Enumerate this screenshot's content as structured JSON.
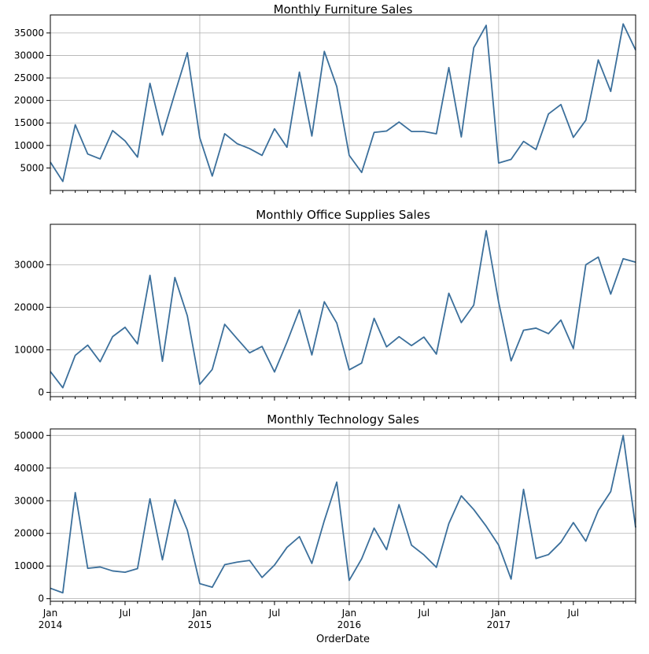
{
  "chart_data": [
    {
      "type": "line",
      "title": "Monthly Furniture Sales",
      "ylim": [
        0,
        39000
      ],
      "yticks": [
        5000,
        10000,
        15000,
        20000,
        25000,
        30000,
        35000
      ],
      "grid": true,
      "color": "#3b6f9b",
      "x": [
        "2014-01",
        "2014-02",
        "2014-03",
        "2014-04",
        "2014-05",
        "2014-06",
        "2014-07",
        "2014-08",
        "2014-09",
        "2014-10",
        "2014-11",
        "2014-12",
        "2015-01",
        "2015-02",
        "2015-03",
        "2015-04",
        "2015-05",
        "2015-06",
        "2015-07",
        "2015-08",
        "2015-09",
        "2015-10",
        "2015-11",
        "2015-12",
        "2016-01",
        "2016-02",
        "2016-03",
        "2016-04",
        "2016-05",
        "2016-06",
        "2016-07",
        "2016-08",
        "2016-09",
        "2016-10",
        "2016-11",
        "2016-12",
        "2017-01",
        "2017-02",
        "2017-03",
        "2017-04",
        "2017-05",
        "2017-06",
        "2017-07",
        "2017-08",
        "2017-09",
        "2017-10",
        "2017-11",
        "2017-12"
      ],
      "values": [
        6300,
        2000,
        14600,
        8100,
        7000,
        13300,
        11000,
        7400,
        23800,
        12300,
        21600,
        30600,
        11700,
        3200,
        12600,
        10400,
        9300,
        7800,
        13700,
        9600,
        26300,
        12100,
        30900,
        23100,
        7800,
        4000,
        12900,
        13200,
        15200,
        13100,
        13100,
        12600,
        27300,
        11900,
        31700,
        36700,
        6100,
        6900,
        10900,
        9100,
        17000,
        19100,
        11800,
        15600,
        29000,
        22000,
        37000,
        31200
      ]
    },
    {
      "type": "line",
      "title": "Monthly Office Supplies Sales",
      "ylim": [
        -1000,
        39500
      ],
      "yticks": [
        0,
        10000,
        20000,
        30000
      ],
      "grid": true,
      "color": "#3b6f9b",
      "x": [
        "2014-01",
        "2014-02",
        "2014-03",
        "2014-04",
        "2014-05",
        "2014-06",
        "2014-07",
        "2014-08",
        "2014-09",
        "2014-10",
        "2014-11",
        "2014-12",
        "2015-01",
        "2015-02",
        "2015-03",
        "2015-04",
        "2015-05",
        "2015-06",
        "2015-07",
        "2015-08",
        "2015-09",
        "2015-10",
        "2015-11",
        "2015-12",
        "2016-01",
        "2016-02",
        "2016-03",
        "2016-04",
        "2016-05",
        "2016-06",
        "2016-07",
        "2016-08",
        "2016-09",
        "2016-10",
        "2016-11",
        "2016-12",
        "2017-01",
        "2017-02",
        "2017-03",
        "2017-04",
        "2017-05",
        "2017-06",
        "2017-07",
        "2017-08",
        "2017-09",
        "2017-10",
        "2017-11",
        "2017-12"
      ],
      "values": [
        4900,
        1100,
        8700,
        11100,
        7200,
        13100,
        15300,
        11400,
        27500,
        7300,
        27000,
        18000,
        1900,
        5400,
        16000,
        12600,
        9300,
        10800,
        4800,
        11800,
        19400,
        8800,
        21300,
        16300,
        5300,
        6900,
        17400,
        10700,
        13100,
        11000,
        13000,
        9000,
        23300,
        16400,
        20500,
        38000,
        21200,
        7400,
        14600,
        15100,
        13800,
        17000,
        10300,
        30000,
        31800,
        23100,
        31400,
        30600
      ]
    },
    {
      "type": "line",
      "title": "Monthly Technology Sales",
      "ylim": [
        -800,
        52000
      ],
      "yticks": [
        0,
        10000,
        20000,
        30000,
        40000,
        50000
      ],
      "grid": true,
      "color": "#3b6f9b",
      "xlabel": "OrderDate",
      "x": [
        "2014-01",
        "2014-02",
        "2014-03",
        "2014-04",
        "2014-05",
        "2014-06",
        "2014-07",
        "2014-08",
        "2014-09",
        "2014-10",
        "2014-11",
        "2014-12",
        "2015-01",
        "2015-02",
        "2015-03",
        "2015-04",
        "2015-05",
        "2015-06",
        "2015-07",
        "2015-08",
        "2015-09",
        "2015-10",
        "2015-11",
        "2015-12",
        "2016-01",
        "2016-02",
        "2016-03",
        "2016-04",
        "2016-05",
        "2016-06",
        "2016-07",
        "2016-08",
        "2016-09",
        "2016-10",
        "2016-11",
        "2016-12",
        "2017-01",
        "2017-02",
        "2017-03",
        "2017-04",
        "2017-05",
        "2017-06",
        "2017-07",
        "2017-08",
        "2017-09",
        "2017-10",
        "2017-11",
        "2017-12"
      ],
      "values": [
        3200,
        1800,
        32500,
        9300,
        9700,
        8500,
        8100,
        9200,
        30600,
        11900,
        30300,
        21000,
        4600,
        3500,
        10400,
        11200,
        11700,
        6500,
        10300,
        15700,
        19000,
        10800,
        23900,
        35700,
        5600,
        12200,
        21600,
        15000,
        28800,
        16400,
        13400,
        9600,
        23000,
        31500,
        27300,
        22200,
        16400,
        6000,
        33500,
        12300,
        13500,
        17300,
        23300,
        17600,
        27000,
        32800,
        50000,
        21800
      ]
    }
  ],
  "x_axis": {
    "ticks": [
      {
        "label": "Jan",
        "sub": "2014",
        "date": "2014-01"
      },
      {
        "label": "Jul",
        "sub": "",
        "date": "2014-07"
      },
      {
        "label": "Jan",
        "sub": "2015",
        "date": "2015-01"
      },
      {
        "label": "Jul",
        "sub": "",
        "date": "2015-07"
      },
      {
        "label": "Jan",
        "sub": "2016",
        "date": "2016-01"
      },
      {
        "label": "Jul",
        "sub": "",
        "date": "2016-07"
      },
      {
        "label": "Jan",
        "sub": "2017",
        "date": "2017-01"
      },
      {
        "label": "Jul",
        "sub": "",
        "date": "2017-07"
      }
    ],
    "xlabel": "OrderDate"
  }
}
